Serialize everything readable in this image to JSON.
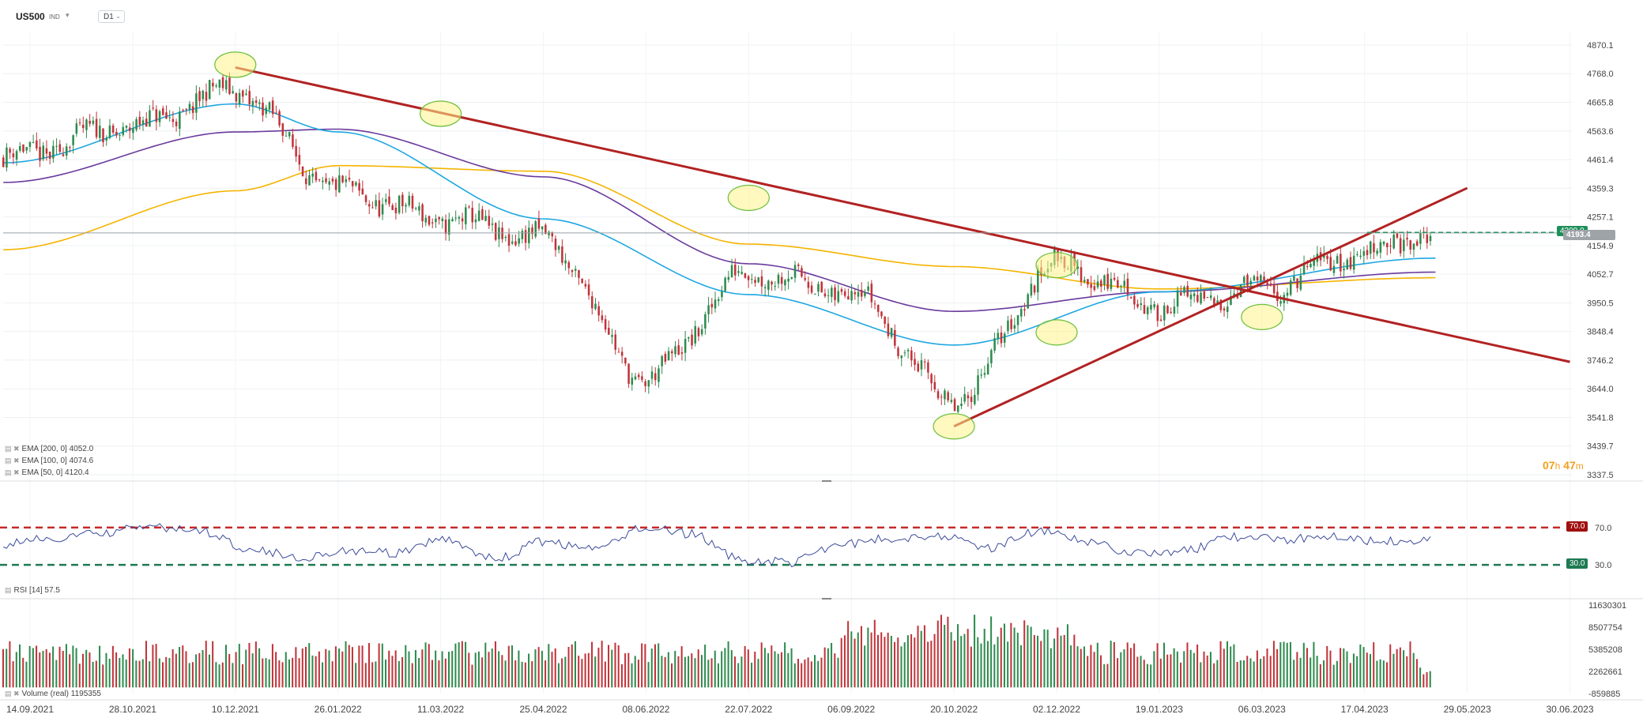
{
  "header": {
    "symbol": "US500",
    "symbol_sub": "IND",
    "timeframe": "D1"
  },
  "price_panel": {
    "y_ticks": [
      "4870.1",
      "4768.0",
      "4665.8",
      "4563.6",
      "4461.4",
      "4359.3",
      "4257.1",
      "4154.9",
      "4052.7",
      "3950.5",
      "3848.4",
      "3746.2",
      "3644.0",
      "3541.8",
      "3439.7",
      "3337.5"
    ],
    "y_tick_values": [
      4870.1,
      4768.0,
      4665.8,
      4563.6,
      4461.4,
      4359.3,
      4257.1,
      4154.9,
      4052.7,
      3950.5,
      3848.4,
      3746.2,
      3644.0,
      3541.8,
      3439.7,
      3337.5
    ],
    "level_tag": "4200.0",
    "level_value": 4200.0,
    "last_tag": "4193.4",
    "last_value": 4193.4,
    "legend": [
      "EMA [200, 0] 4052.0",
      "EMA [100, 0] 4074.6",
      "EMA [50, 0] 4120.4"
    ],
    "timer_hours": "07",
    "timer_h": "h",
    "timer_minutes": "47",
    "timer_m": "m"
  },
  "rsi_panel": {
    "y_ticks": [
      "70.0",
      "30.0"
    ],
    "upper_tag": "70.0",
    "lower_tag": "30.0",
    "legend": "RSI [14] 57.5"
  },
  "volume_panel": {
    "y_ticks": [
      "11630301",
      "8507754",
      "5385208",
      "2262661",
      "-859885"
    ],
    "y_tick_values": [
      11630301,
      8507754,
      5385208,
      2262661,
      -859885
    ],
    "legend": "Volume (real) 1195355"
  },
  "x_axis": [
    "14.09.2021",
    "28.10.2021",
    "10.12.2021",
    "26.01.2022",
    "11.03.2022",
    "25.04.2022",
    "08.06.2022",
    "22.07.2022",
    "06.09.2022",
    "20.10.2022",
    "02.12.2022",
    "19.01.2023",
    "06.03.2023",
    "17.04.2023",
    "29.05.2023",
    "30.06.2023"
  ],
  "colors": {
    "bull": "#2e8b4e",
    "bear": "#c0343a",
    "ema50": "#1ea7e1",
    "ema100": "#6a3a9e",
    "ema200": "#f5b400",
    "trend": "#b22222",
    "rsi_line": "#3b4a9a",
    "rsi_upper": "#c62828",
    "rsi_lower": "#1f7a52",
    "highlight": "#fff38a",
    "highlight_stroke": "#6bbf3a",
    "level_tag_bg": "#1f8f5a",
    "last_tag_bg": "#9ea3a8"
  },
  "chart_data": [
    {
      "type": "candlestick",
      "title": "US500",
      "timeframe": "D1",
      "x": [
        "14.09.2021",
        "28.10.2021",
        "10.12.2021",
        "26.01.2022",
        "11.03.2022",
        "25.04.2022",
        "08.06.2022",
        "22.07.2022",
        "06.09.2022",
        "20.10.2022",
        "02.12.2022",
        "19.01.2023",
        "06.03.2023",
        "17.04.2023"
      ],
      "close": [
        4470,
        4580,
        4710,
        4350,
        4250,
        4180,
        3680,
        4060,
        3990,
        3600,
        4090,
        3940,
        4000,
        4130
      ],
      "ylim": [
        3337.5,
        4870.1
      ],
      "series": [
        {
          "name": "EMA [200, 0] 4052.0",
          "x": [
            "14.09.2021",
            "10.12.2021",
            "26.01.2022",
            "25.04.2022",
            "22.07.2022",
            "20.10.2022",
            "19.01.2023",
            "17.04.2023"
          ],
          "values": [
            4140,
            4350,
            4440,
            4420,
            4160,
            4080,
            4000,
            4040
          ]
        },
        {
          "name": "EMA [100, 0] 4074.6",
          "x": [
            "14.09.2021",
            "10.12.2021",
            "26.01.2022",
            "25.04.2022",
            "22.07.2022",
            "20.10.2022",
            "19.01.2023",
            "17.04.2023"
          ],
          "values": [
            4380,
            4560,
            4570,
            4400,
            4090,
            3920,
            3990,
            4060
          ]
        },
        {
          "name": "EMA [50, 0] 4120.4",
          "x": [
            "14.09.2021",
            "10.12.2021",
            "26.01.2022",
            "25.04.2022",
            "22.07.2022",
            "20.10.2022",
            "19.01.2023",
            "17.04.2023"
          ],
          "values": [
            4450,
            4660,
            4560,
            4250,
            3980,
            3800,
            3990,
            4110
          ]
        }
      ],
      "trendlines": [
        {
          "from": [
            "10.12.2021",
            4790
          ],
          "to": [
            "30.06.2023",
            3740
          ]
        },
        {
          "from": [
            "20.10.2022",
            3510
          ],
          "to": [
            "29.05.2023",
            4360
          ]
        }
      ],
      "highlights": [
        {
          "x": "10.12.2021",
          "y": 4800
        },
        {
          "x": "11.03.2022",
          "y": 4625
        },
        {
          "x": "22.07.2022",
          "y": 4325
        },
        {
          "x": "20.10.2022",
          "y": 3510
        },
        {
          "x": "02.12.2022",
          "y": 4085
        },
        {
          "x": "02.12.2022",
          "y": 3845
        },
        {
          "x": "06.03.2023",
          "y": 3900
        }
      ],
      "horizontal_level": 4200.0,
      "last_price": 4193.4
    },
    {
      "type": "line",
      "title": "",
      "series": [
        {
          "name": "RSI [14] 57.5",
          "values": [
            52,
            58,
            64,
            71,
            66,
            48,
            38,
            45,
            42,
            58,
            36,
            55,
            46,
            70,
            63,
            35,
            33,
            52,
            58,
            62,
            48,
            66,
            55,
            43,
            45,
            60,
            57,
            62,
            55,
            57.5
          ]
        }
      ],
      "ylim": [
        20,
        80
      ],
      "reference_lines": [
        70.0,
        30.0
      ]
    },
    {
      "type": "bar",
      "title": "",
      "series": [
        {
          "name": "Volume (real) 1195355",
          "values": []
        }
      ],
      "ylim": [
        -859885,
        11630301
      ]
    }
  ]
}
